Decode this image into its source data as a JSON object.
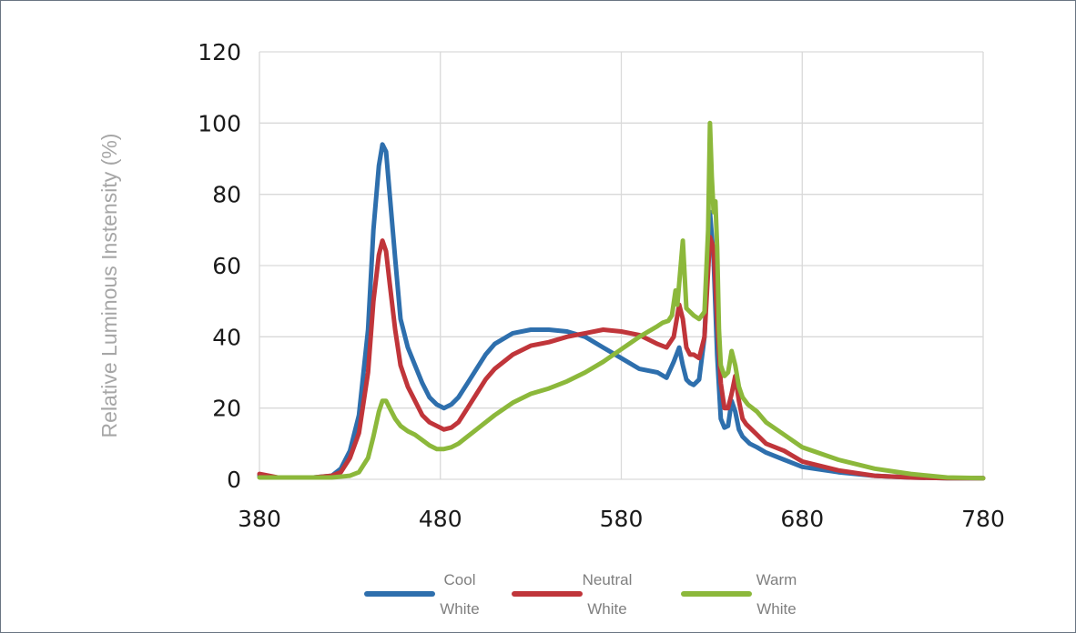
{
  "chart_data": {
    "type": "line",
    "ylabel": "Relative Luminous Instensity (%)",
    "xlabel": "",
    "xlim": [
      380,
      780
    ],
    "ylim": [
      0,
      120
    ],
    "x_ticks": [
      380,
      480,
      580,
      680,
      780
    ],
    "y_ticks": [
      0,
      20,
      40,
      60,
      80,
      100,
      120
    ],
    "grid": true,
    "legend_position": "bottom",
    "series": [
      {
        "name_lines": [
          "Cool",
          "White"
        ],
        "color": "#2e6fad",
        "x": [
          380,
          390,
          400,
          410,
          420,
          425,
          430,
          435,
          440,
          443,
          446,
          448,
          450,
          452,
          455,
          458,
          462,
          466,
          470,
          474,
          478,
          482,
          486,
          490,
          495,
          500,
          505,
          510,
          520,
          530,
          540,
          550,
          560,
          570,
          580,
          590,
          600,
          605,
          609,
          612,
          614,
          616,
          618,
          620,
          623,
          626,
          629,
          631,
          633,
          635,
          637,
          639,
          641,
          643,
          645,
          647,
          649,
          651,
          655,
          660,
          670,
          680,
          700,
          720,
          740,
          760,
          780
        ],
        "y": [
          1,
          0.5,
          0.5,
          0.5,
          1,
          3,
          8,
          18,
          42,
          70,
          88,
          94,
          92,
          80,
          62,
          45,
          37,
          32,
          27,
          23,
          21,
          20,
          21,
          23,
          27,
          31,
          35,
          38,
          41,
          42,
          42,
          41.5,
          40,
          37,
          34,
          31,
          30,
          28.5,
          33,
          37,
          32,
          28,
          27,
          26.5,
          28,
          40,
          75,
          62,
          35,
          17,
          14.5,
          15,
          22,
          19,
          14,
          12,
          11,
          10,
          9,
          7.5,
          5.5,
          3.5,
          2,
          1,
          0.5,
          0.3,
          0.3
        ]
      },
      {
        "name_lines": [
          "Neutral",
          "White"
        ],
        "color": "#c0353a",
        "x": [
          380,
          390,
          400,
          410,
          420,
          425,
          430,
          435,
          440,
          443,
          446,
          448,
          450,
          452,
          455,
          458,
          462,
          466,
          470,
          474,
          478,
          482,
          486,
          490,
          495,
          500,
          505,
          510,
          520,
          530,
          540,
          550,
          560,
          570,
          580,
          590,
          600,
          605,
          609,
          612,
          614,
          616,
          618,
          620,
          623,
          626,
          629,
          631,
          633,
          635,
          637,
          639,
          641,
          643,
          645,
          647,
          649,
          651,
          655,
          660,
          670,
          680,
          700,
          720,
          740,
          760,
          780
        ],
        "y": [
          1.5,
          0.5,
          0.5,
          0.5,
          1,
          2,
          6,
          13,
          30,
          50,
          63,
          67,
          64,
          55,
          42,
          32,
          26,
          22,
          18,
          16,
          15,
          14,
          14.5,
          16,
          20,
          24,
          28,
          31,
          35,
          37.5,
          38.5,
          40,
          41,
          42,
          41.5,
          40.5,
          38,
          37,
          40,
          49,
          45,
          37,
          35,
          35,
          34,
          40,
          68,
          65,
          45,
          27,
          20,
          20,
          24,
          29,
          22,
          17,
          15.5,
          14.5,
          12.5,
          10,
          8,
          5,
          2.5,
          1,
          0.5,
          0.3,
          0.3
        ]
      },
      {
        "name_lines": [
          "Warm",
          "White"
        ],
        "color": "#8cb83b",
        "x": [
          380,
          400,
          420,
          430,
          435,
          440,
          443,
          446,
          448,
          450,
          452,
          455,
          458,
          462,
          466,
          470,
          474,
          478,
          482,
          486,
          490,
          500,
          510,
          520,
          530,
          540,
          550,
          560,
          570,
          580,
          590,
          600,
          603,
          606,
          608,
          610,
          611,
          612,
          614,
          616,
          620,
          623,
          626,
          628,
          629,
          630,
          631,
          632,
          633,
          634,
          635,
          637,
          639,
          641,
          643,
          645,
          647,
          650,
          655,
          660,
          670,
          680,
          700,
          720,
          740,
          760,
          780
        ],
        "y": [
          0.5,
          0.5,
          0.5,
          1,
          2,
          6,
          12,
          19,
          22,
          22,
          20,
          17,
          15,
          13.5,
          12.5,
          11,
          9.5,
          8.5,
          8.5,
          9,
          10,
          14,
          18,
          21.5,
          24,
          25.5,
          27.5,
          30,
          33,
          36.5,
          40,
          43,
          44,
          44.5,
          46,
          53,
          49,
          55,
          67,
          48,
          46,
          45,
          47,
          70,
          100,
          85,
          75,
          78,
          65,
          42,
          32,
          29,
          30,
          36,
          32,
          26,
          23,
          21,
          19,
          16,
          12.5,
          9,
          5.5,
          3,
          1.5,
          0.5,
          0.3
        ]
      }
    ]
  }
}
